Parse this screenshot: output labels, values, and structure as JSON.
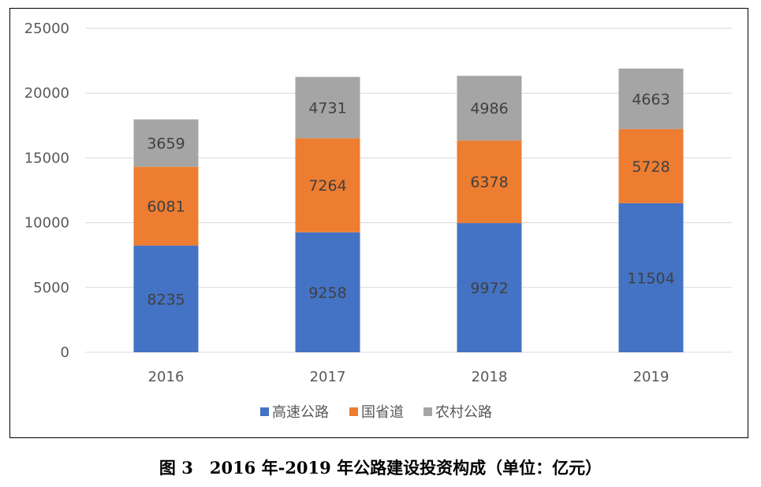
{
  "chart_data": {
    "type": "bar",
    "stacked": true,
    "categories": [
      "2016",
      "2017",
      "2018",
      "2019"
    ],
    "series": [
      {
        "name": "高速公路",
        "color": "#4472C4",
        "values": [
          8235,
          9258,
          9972,
          11504
        ]
      },
      {
        "name": "国省道",
        "color": "#ED7D31",
        "values": [
          6081,
          7264,
          6378,
          5728
        ]
      },
      {
        "name": "农村公路",
        "color": "#A5A5A5",
        "values": [
          3659,
          4731,
          4986,
          4663
        ]
      }
    ],
    "ylim": [
      0,
      25000
    ],
    "yticks": [
      0,
      5000,
      10000,
      15000,
      20000,
      25000
    ],
    "grid": true,
    "legend": "bottom",
    "data_labels": true,
    "xlabel": "",
    "ylabel": ""
  },
  "caption": "图 3　2016 年-2019 年公路建设投资构成（单位：亿元）"
}
